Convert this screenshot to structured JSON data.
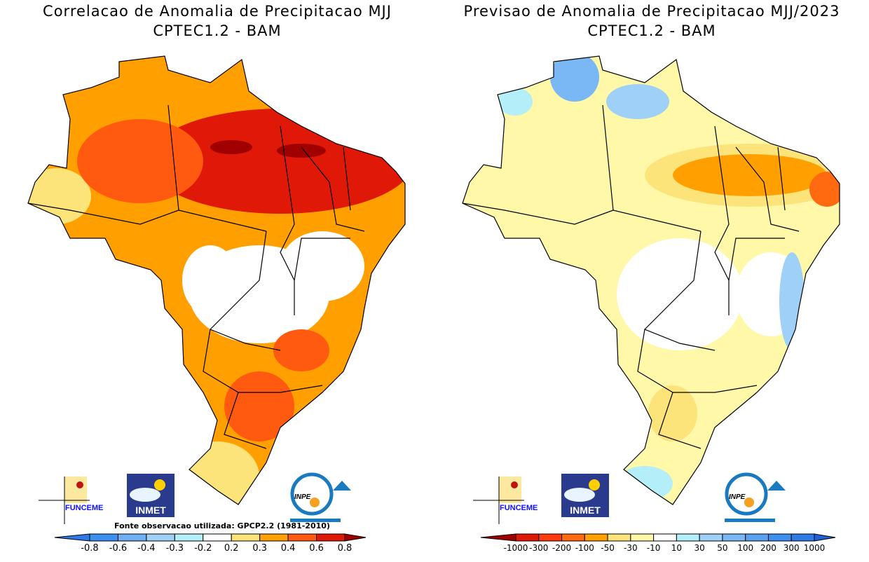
{
  "left": {
    "title": "Correlacao de Anomalia de Precipitacao MJJ",
    "subtitle": "CPTEC1.2 - BAM",
    "source_note": "Fonte observacao utilizada: GPCP2.2 (1981-2010)",
    "colorbar": {
      "labels": [
        "-0.8",
        "-0.6",
        "-0.4",
        "-0.3",
        "-0.2",
        "0.2",
        "0.3",
        "0.4",
        "0.6",
        "0.8"
      ],
      "colors": [
        "#2f7be6",
        "#3d8ff0",
        "#6fb0f5",
        "#9fd0f7",
        "#b4eef8",
        "#ffffff",
        "#fde47a",
        "#ffa000",
        "#ff5a10",
        "#e01808",
        "#a00000"
      ]
    }
  },
  "right": {
    "title": "Previsao de Anomalia de Precipitacao MJJ/2023",
    "subtitle": "CPTEC1.2 - BAM",
    "colorbar": {
      "labels": [
        "-1000",
        "-300",
        "-200",
        "-100",
        "-50",
        "-30",
        "-10",
        "10",
        "30",
        "50",
        "100",
        "200",
        "300",
        "1000"
      ],
      "colors": [
        "#a00000",
        "#e01808",
        "#ff3a10",
        "#ff6a10",
        "#ffa000",
        "#fde47a",
        "#fff8a8",
        "#ffffff",
        "#b4eef8",
        "#9fd0f7",
        "#7ab8f5",
        "#5aa2f0",
        "#3d8ff0",
        "#2f7be6",
        "#2060d8"
      ]
    }
  },
  "logos": {
    "funceme": "FUNCEME",
    "inmet": "INMET",
    "inpe": "INPE"
  }
}
